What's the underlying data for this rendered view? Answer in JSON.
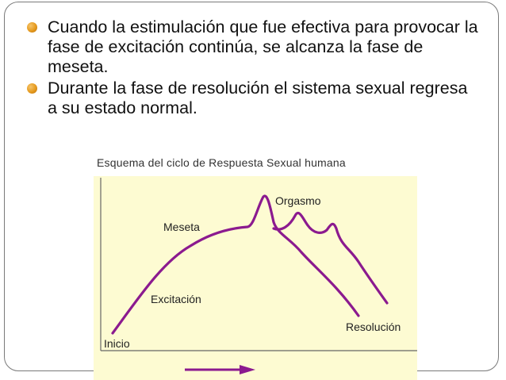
{
  "bullets": [
    {
      "text": "Cuando la estimulación  que fue efectiva para provocar la fase de excitación continúa, se alcanza la fase de meseta."
    },
    {
      "text": "Durante la fase de resolución el sistema sexual regresa a su estado normal."
    }
  ],
  "diagram": {
    "title": "Esquema del ciclo de Respuesta Sexual humana",
    "labels": {
      "orgasm": "Orgasmo",
      "plateau": "Meseta",
      "excitement": "Excitación",
      "resolution": "Resolución",
      "start": "Inicio"
    },
    "colors": {
      "curve": "#8b1a8f",
      "bullet": "#e59a1e",
      "axis": "#666666",
      "background": "#fdfbd2"
    }
  }
}
